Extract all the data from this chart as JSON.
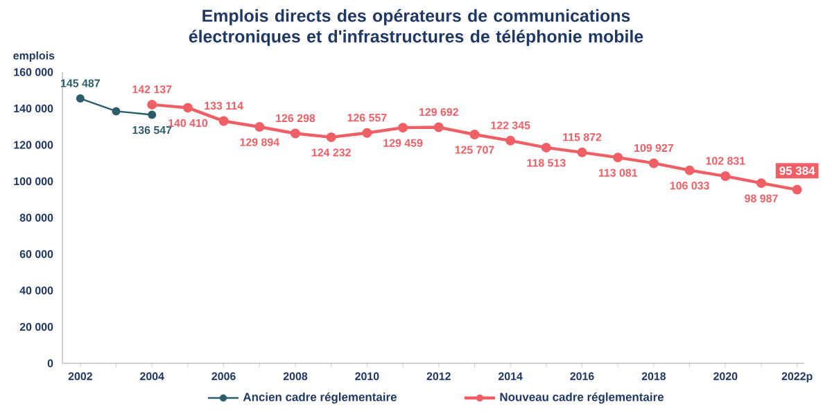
{
  "chart_data": {
    "type": "line",
    "title": "Emplois directs des opérateurs de communications électroniques et d'infrastructures de téléphonie mobile",
    "ylabel": "emplois",
    "categories": [
      "2002",
      null,
      "2004",
      null,
      "2006",
      null,
      "2008",
      null,
      "2010",
      null,
      "2012",
      null,
      "2014",
      null,
      "2016",
      null,
      "2018",
      null,
      "2020",
      null,
      "2022p"
    ],
    "series": [
      {
        "name": "Ancien cadre réglementaire",
        "color": "#2b5d6b",
        "values": [
          145487,
          138500,
          136547,
          null,
          null,
          null,
          null,
          null,
          null,
          null,
          null,
          null,
          null,
          null,
          null,
          null,
          null,
          null,
          null,
          null,
          null
        ],
        "value_labels": [
          "145 487",
          null,
          "136 547",
          null,
          null,
          null,
          null,
          null,
          null,
          null,
          null,
          null,
          null,
          null,
          null,
          null,
          null,
          null,
          null,
          null,
          null
        ]
      },
      {
        "name": "Nouveau cadre réglementaire",
        "color": "#ee6066",
        "values": [
          null,
          null,
          142137,
          140410,
          133114,
          129894,
          126298,
          124232,
          126557,
          129459,
          129692,
          125707,
          122345,
          118513,
          115872,
          113081,
          109927,
          106033,
          102831,
          98987,
          95384
        ],
        "value_labels": [
          null,
          null,
          "142 137",
          "140 410",
          "133 114",
          "129 894",
          "126 298",
          "124 232",
          "126 557",
          "129 459",
          "129 692",
          "125 707",
          "122 345",
          "118 513",
          "115 872",
          "113 081",
          "109 927",
          "106 033",
          "102 831",
          "98 987",
          "95 384"
        ]
      }
    ],
    "ylim": [
      0,
      160000
    ],
    "yticks": [
      0,
      {
        "value": 20000,
        "label": "20 000"
      },
      {
        "value": 40000,
        "label": "40 000"
      },
      {
        "value": 60000,
        "label": "60 000"
      },
      {
        "value": 80000,
        "label": "80 000"
      },
      {
        "value": 100000,
        "label": "100 000"
      },
      {
        "value": 120000,
        "label": "120 000"
      },
      {
        "value": 140000,
        "label": "140 000"
      },
      {
        "value": 160000,
        "label": "160 000"
      }
    ],
    "grid": false,
    "legend": "bottom",
    "marker": "circle",
    "line_style": "solid"
  }
}
